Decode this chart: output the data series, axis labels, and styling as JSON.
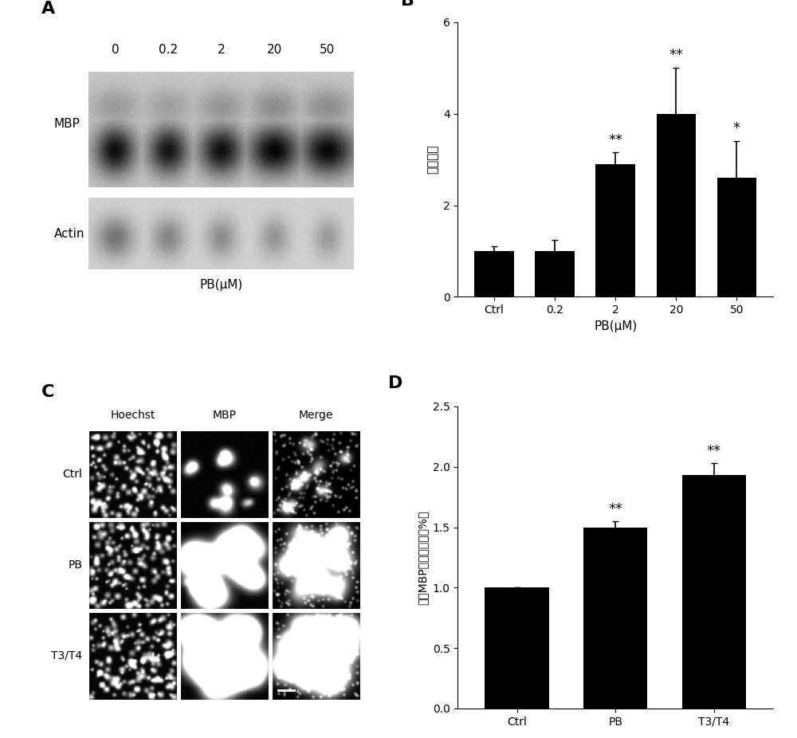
{
  "panel_B": {
    "categories": [
      "Ctrl",
      "0.2",
      "2",
      "20",
      "50"
    ],
    "values": [
      1.0,
      1.0,
      2.9,
      4.0,
      2.6
    ],
    "errors": [
      0.1,
      0.25,
      0.25,
      1.0,
      0.8
    ],
    "ylabel": "相对密度",
    "xlabel": "PB(μM)",
    "ylim": [
      0,
      6
    ],
    "yticks": [
      0,
      2,
      4,
      6
    ],
    "sig_labels": [
      "",
      "",
      "**",
      "**",
      "*"
    ],
    "panel_label": "B"
  },
  "panel_D": {
    "categories": [
      "Ctrl",
      "PB",
      "T3/T4"
    ],
    "values": [
      1.0,
      1.5,
      1.93
    ],
    "errors": [
      0.0,
      0.05,
      0.1
    ],
    "ylabel": "相对MBP阳性细胞数（%）",
    "xlabel": "",
    "ylim": [
      0,
      2.5
    ],
    "yticks": [
      0,
      0.5,
      1.0,
      1.5,
      2.0,
      2.5
    ],
    "sig_labels": [
      "",
      "**",
      "**"
    ],
    "panel_label": "D"
  },
  "bar_color": "#000000",
  "bg_color": "#ffffff",
  "panel_A_label": "A",
  "panel_C_label": "C",
  "microscopy_col_labels": [
    "Hoechst",
    "MBP",
    "Merge"
  ],
  "microscopy_row_labels": [
    "Ctrl",
    "PB",
    "T3/T4"
  ],
  "blot_concentrations": [
    "0",
    "0.2",
    "2",
    "20",
    "50"
  ],
  "blot_row_labels": [
    "MBP",
    "Actin"
  ],
  "blot_xlabel": "PB(μM)"
}
